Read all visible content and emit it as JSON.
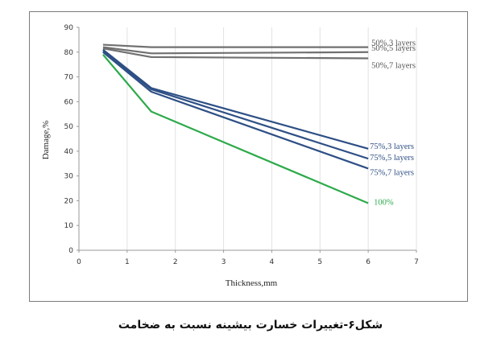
{
  "caption": "شکل۶-تغییرات خسارت بیشینه نسبت به ضخامت",
  "chart_data": {
    "type": "line",
    "xlabel": "Thickness,mm",
    "ylabel": "Damage,%",
    "xlim": [
      0,
      7
    ],
    "ylim": [
      0,
      90
    ],
    "xticks": [
      0,
      1,
      2,
      3,
      4,
      5,
      6,
      7
    ],
    "yticks": [
      0,
      10,
      20,
      30,
      40,
      50,
      60,
      70,
      80,
      90
    ],
    "grid": "vertical",
    "series": [
      {
        "name": "50%,3 layers",
        "color": "#707070",
        "x": [
          0.5,
          1.5,
          6.0
        ],
        "y": [
          83,
          82,
          82
        ]
      },
      {
        "name": "50%,5 layers",
        "color": "#707070",
        "x": [
          0.5,
          1.5,
          6.0
        ],
        "y": [
          82,
          79.5,
          80
        ]
      },
      {
        "name": "50%,7 layers",
        "color": "#707070",
        "x": [
          0.5,
          1.5,
          6.0
        ],
        "y": [
          81.5,
          78,
          77.5
        ]
      },
      {
        "name": "75%,3 layers",
        "color": "#2e4f85",
        "x": [
          0.5,
          1.5,
          6.0
        ],
        "y": [
          81,
          65.5,
          41
        ]
      },
      {
        "name": "75%,5 layers",
        "color": "#2e4f85",
        "x": [
          0.5,
          1.5,
          6.0
        ],
        "y": [
          80.5,
          65,
          37
        ]
      },
      {
        "name": "75%,7 layers",
        "color": "#2e4f85",
        "x": [
          0.5,
          1.5,
          6.0
        ],
        "y": [
          80,
          64,
          33
        ]
      },
      {
        "name": "100%",
        "color": "#2daa4a",
        "x": [
          0.5,
          1.5,
          6.0
        ],
        "y": [
          79,
          56,
          19
        ]
      }
    ],
    "label_colors": {
      "gray": "#555555",
      "blue": "#2e4f85",
      "green": "#2daa4a"
    }
  }
}
